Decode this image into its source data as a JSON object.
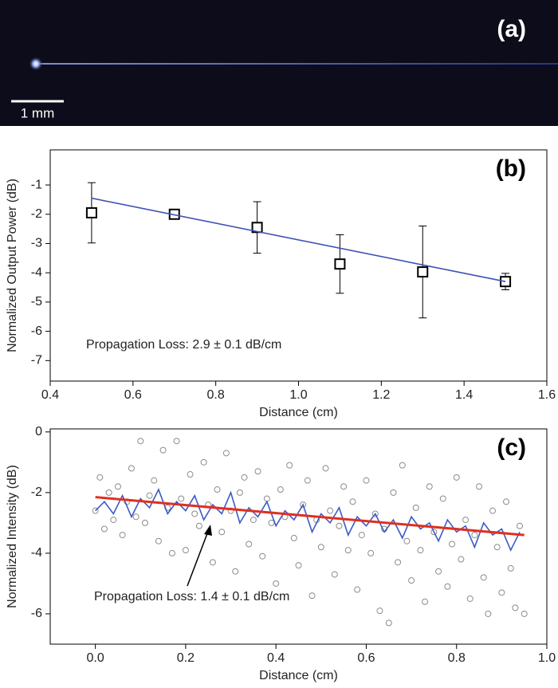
{
  "image": {
    "label": "(a)",
    "scale_bar": "1 mm"
  },
  "chart_data": [
    {
      "type": "scatter",
      "label": "(b)",
      "x_label": "Distance (cm)",
      "y_label": "Normalized Output Power (dB)",
      "annotation": "Propagation Loss: 2.9 ± 0.1 dB/cm",
      "xlim": [
        0.4,
        1.6
      ],
      "xticks": [
        0.4,
        0.6,
        0.8,
        {
          "value": 1,
          "label": "1.0"
        },
        1.2,
        1.4,
        1.6
      ],
      "ylim": [
        -7.7,
        0.2
      ],
      "yticks": [
        -7,
        -6,
        -5,
        -4,
        -3,
        -2,
        -1
      ],
      "series": [
        {
          "color": "#000000",
          "marker": "square",
          "x": [
            0.5,
            0.7,
            0.9,
            1.1,
            1.3,
            1.5
          ],
          "values": [
            -1.95,
            -2.0,
            -2.45,
            -3.7,
            -3.97,
            -4.3
          ],
          "errors": [
            1.03,
            0.08,
            0.88,
            1.0,
            1.57,
            0.28
          ]
        },
        {
          "color": "#3f51b5",
          "marker": "line",
          "x": [
            0.5,
            1.5
          ],
          "values": [
            -1.45,
            -4.3
          ]
        }
      ]
    },
    {
      "type": "scatter",
      "label": "(c)",
      "x_label": "Distance (cm)",
      "y_label": "Normalized Intensity (dB)",
      "annotation": "Propagation Loss: 1.4 ± 0.1 dB/cm",
      "xlim": [
        -0.1,
        1.0
      ],
      "xticks": [
        {
          "value": 0,
          "label": "0.0"
        },
        0.2,
        0.4,
        0.6,
        0.8,
        {
          "value": 1,
          "label": "1.0"
        }
      ],
      "ylim": [
        -7,
        0.1
      ],
      "yticks": [
        -6,
        -4,
        -2,
        0
      ],
      "series": [
        {
          "color": "#8c8c8c",
          "marker": "circle",
          "x": [
            0,
            0.01,
            0.02,
            0.03,
            0.04,
            0.05,
            0.06,
            0.07,
            0.08,
            0.09,
            0.1,
            0.11,
            0.12,
            0.13,
            0.14,
            0.15,
            0.16,
            0.17,
            0.18,
            0.19,
            0.2,
            0.21,
            0.22,
            0.23,
            0.24,
            0.25,
            0.26,
            0.27,
            0.28,
            0.29,
            0.3,
            0.31,
            0.32,
            0.33,
            0.34,
            0.35,
            0.36,
            0.37,
            0.38,
            0.39,
            0.4,
            0.41,
            0.42,
            0.43,
            0.44,
            0.45,
            0.46,
            0.47,
            0.48,
            0.49,
            0.5,
            0.51,
            0.52,
            0.53,
            0.54,
            0.55,
            0.56,
            0.57,
            0.58,
            0.59,
            0.6,
            0.61,
            0.62,
            0.63,
            0.64,
            0.65,
            0.66,
            0.67,
            0.68,
            0.69,
            0.7,
            0.71,
            0.72,
            0.73,
            0.74,
            0.75,
            0.76,
            0.77,
            0.78,
            0.79,
            0.8,
            0.81,
            0.82,
            0.83,
            0.84,
            0.85,
            0.86,
            0.87,
            0.88,
            0.89,
            0.9,
            0.91,
            0.92,
            0.93,
            0.94,
            0.95
          ],
          "values": [
            -2.6,
            -1.5,
            -3.2,
            -2.0,
            -2.9,
            -1.8,
            -3.4,
            -2.3,
            -1.2,
            -2.8,
            -0.3,
            -3.0,
            -2.1,
            -1.6,
            -3.6,
            -0.6,
            -2.5,
            -4.0,
            -0.3,
            -2.2,
            -3.9,
            -1.4,
            -2.7,
            -3.1,
            -1.0,
            -2.4,
            -4.3,
            -1.9,
            -3.3,
            -0.7,
            -2.6,
            -4.6,
            -2.0,
            -1.5,
            -3.7,
            -2.9,
            -1.3,
            -4.1,
            -2.2,
            -3.0,
            -5.0,
            -1.9,
            -2.8,
            -1.1,
            -3.5,
            -4.4,
            -2.4,
            -1.6,
            -5.4,
            -2.9,
            -3.8,
            -1.2,
            -2.6,
            -4.7,
            -3.1,
            -1.8,
            -3.9,
            -2.3,
            -5.2,
            -3.4,
            -1.6,
            -4.0,
            -2.7,
            -5.9,
            -3.2,
            -6.3,
            -2.0,
            -4.3,
            -1.1,
            -3.6,
            -4.9,
            -2.5,
            -3.9,
            -5.6,
            -1.8,
            -3.3,
            -4.6,
            -2.2,
            -5.1,
            -3.7,
            -1.5,
            -4.2,
            -2.9,
            -5.5,
            -3.4,
            -1.8,
            -4.8,
            -6.0,
            -2.6,
            -3.8,
            -5.3,
            -2.3,
            -4.5,
            -5.8,
            -3.1,
            -6.0
          ]
        },
        {
          "color": "#3a5bc7",
          "marker": "line",
          "x": [
            0,
            0.02,
            0.04,
            0.06,
            0.08,
            0.1,
            0.12,
            0.14,
            0.16,
            0.18,
            0.2,
            0.22,
            0.24,
            0.26,
            0.28,
            0.3,
            0.32,
            0.34,
            0.36,
            0.38,
            0.4,
            0.42,
            0.44,
            0.46,
            0.48,
            0.5,
            0.52,
            0.54,
            0.56,
            0.58,
            0.6,
            0.62,
            0.64,
            0.66,
            0.68,
            0.7,
            0.72,
            0.74,
            0.76,
            0.78,
            0.8,
            0.82,
            0.84,
            0.86,
            0.88,
            0.9,
            0.92,
            0.94
          ],
          "values": [
            -2.6,
            -2.3,
            -2.7,
            -2.1,
            -2.8,
            -2.2,
            -2.5,
            -1.9,
            -2.7,
            -2.3,
            -2.6,
            -2.1,
            -2.9,
            -2.4,
            -2.7,
            -2.0,
            -3.0,
            -2.5,
            -2.8,
            -2.3,
            -3.1,
            -2.6,
            -2.9,
            -2.4,
            -3.3,
            -2.7,
            -3.0,
            -2.5,
            -3.4,
            -2.8,
            -3.1,
            -2.7,
            -3.3,
            -2.9,
            -3.5,
            -2.8,
            -3.2,
            -3.0,
            -3.6,
            -2.9,
            -3.3,
            -3.1,
            -3.8,
            -3.0,
            -3.4,
            -3.2,
            -3.9,
            -3.3
          ]
        },
        {
          "color": "#e0301e",
          "marker": "line",
          "width": 3,
          "x": [
            0,
            0.95
          ],
          "values": [
            -2.15,
            -3.4
          ]
        }
      ]
    }
  ]
}
